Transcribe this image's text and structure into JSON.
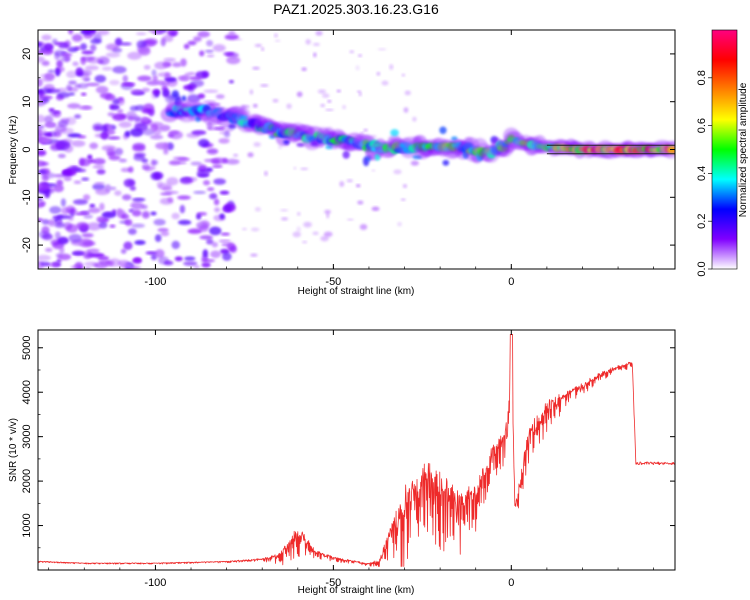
{
  "title": "PAZ1.2025.303.16.23.G16",
  "chart_data": [
    {
      "type": "heatmap",
      "xlabel": "Height of straight line (km)",
      "ylabel": "Frequency (Hz)",
      "xlim": [
        -133,
        46
      ],
      "ylim": [
        -25,
        25
      ],
      "xticks": [
        -100,
        -50,
        0
      ],
      "xtick_labels": [
        "-100",
        "-50",
        "0"
      ],
      "yticks": [
        -20,
        -10,
        0,
        10,
        20
      ],
      "ytick_labels": [
        "-20",
        "-10",
        "0",
        "10",
        "20"
      ],
      "colorbar": {
        "label": "Normalized spectral amplitude",
        "range": [
          0.0,
          1.0
        ],
        "ticks": [
          0.0,
          0.2,
          0.4,
          0.6,
          0.8
        ],
        "tick_labels": [
          "0.0",
          "0.2",
          "0.4",
          "0.6",
          "0.8"
        ],
        "colormap": [
          "#ffffff",
          "#8000ff",
          "#0000ff",
          "#00ffff",
          "#00ff00",
          "#ffff00",
          "#ff8000",
          "#ff0000",
          "#ff0080"
        ]
      },
      "ridge": {
        "x": [
          -95,
          -85,
          -75,
          -65,
          -55,
          -45,
          -35,
          -25,
          -15,
          -5,
          0,
          5,
          10,
          20,
          30,
          46
        ],
        "frequency": [
          8,
          8,
          6,
          3.5,
          2.5,
          1.5,
          0,
          0.5,
          0.5,
          -0.5,
          2,
          1,
          0.5,
          0,
          0,
          0
        ],
        "amplitude": [
          0.35,
          0.35,
          0.4,
          0.45,
          0.45,
          0.45,
          0.45,
          0.5,
          0.5,
          0.5,
          0.55,
          0.6,
          0.6,
          0.8,
          0.85,
          0.9
        ]
      },
      "annotations": [
        "noise scatter -133 to -80 km",
        "steady signal band at 0 Hz beyond 15 km"
      ]
    },
    {
      "type": "line",
      "xlabel": "Height of straight line (km)",
      "ylabel": "SNR (10 * v/v)",
      "xlim": [
        -133,
        46
      ],
      "ylim": [
        0,
        5400
      ],
      "xticks": [
        -100,
        -50,
        0
      ],
      "xtick_labels": [
        "-100",
        "-50",
        "0"
      ],
      "yticks": [
        1000,
        2000,
        3000,
        4000,
        5000
      ],
      "ytick_labels": [
        "1000",
        "2000",
        "3000",
        "4000",
        "5000"
      ],
      "series": [
        {
          "name": "SNR",
          "color": "#ee2a2a",
          "x": [
            -133,
            -120,
            -100,
            -80,
            -70,
            -65,
            -60,
            -55,
            -50,
            -45,
            -40,
            -37,
            -35,
            -30,
            -25,
            -20,
            -15,
            -10,
            -5,
            -1,
            0,
            1,
            5,
            10,
            15,
            20,
            25,
            30,
            34,
            35,
            40,
            46
          ],
          "envelope": [
            200,
            160,
            160,
            200,
            260,
            400,
            1000,
            450,
            300,
            220,
            150,
            250,
            800,
            1800,
            2400,
            2200,
            1800,
            1900,
            2800,
            3400,
            5300,
            1500,
            3200,
            3800,
            4000,
            4200,
            4450,
            4600,
            4700,
            2400,
            2400,
            2400
          ],
          "spread": [
            30,
            30,
            30,
            40,
            70,
            300,
            700,
            200,
            120,
            80,
            60,
            300,
            700,
            1800,
            2000,
            1800,
            1500,
            1000,
            800,
            1000,
            600,
            600,
            800,
            700,
            400,
            250,
            200,
            150,
            150,
            60,
            60,
            60
          ]
        }
      ]
    }
  ]
}
